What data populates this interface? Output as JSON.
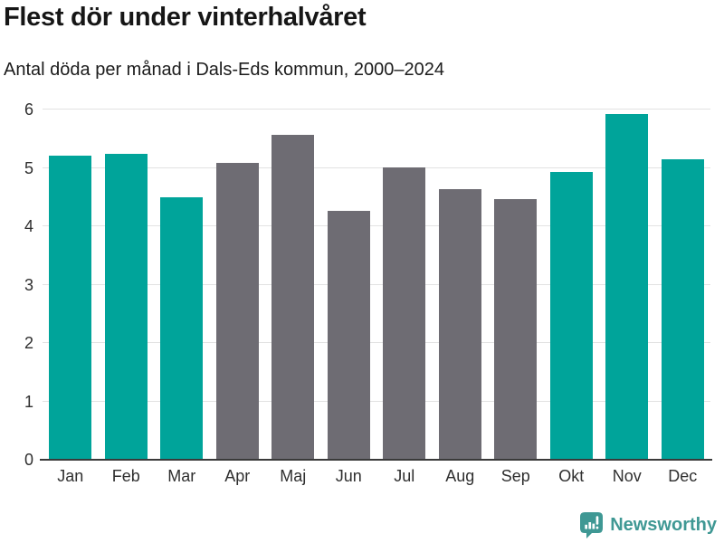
{
  "header": {
    "title": "Flest dör under vinterhalvåret",
    "subtitle": "Antal döda per månad i Dals-Eds kommun, 2000–2024"
  },
  "chart_data": {
    "type": "bar",
    "title": "Flest dör under vinterhalvåret",
    "subtitle": "Antal döda per månad i Dals-Eds kommun, 2000–2024",
    "categories": [
      "Jan",
      "Feb",
      "Mar",
      "Apr",
      "Maj",
      "Jun",
      "Jul",
      "Aug",
      "Sep",
      "Okt",
      "Nov",
      "Dec"
    ],
    "values": [
      5.21,
      5.24,
      4.49,
      5.08,
      5.57,
      4.26,
      5.01,
      4.64,
      4.46,
      4.93,
      5.93,
      5.14
    ],
    "highlighted": [
      true,
      true,
      true,
      false,
      false,
      false,
      false,
      false,
      false,
      true,
      true,
      true
    ],
    "colors": {
      "highlight": "#00a49a",
      "default": "#6e6c73",
      "grid": "#e2e2e2",
      "axis": "#3a3a3a"
    },
    "xlabel": "",
    "ylabel": "",
    "ylim": [
      0,
      6
    ],
    "yticks": [
      0,
      1,
      2,
      3,
      4,
      5,
      6
    ],
    "grid": true,
    "legend": false
  },
  "footer": {
    "logo_text": "Newsworthy",
    "logo_color": "#3f9894",
    "logo_icon": "newsworthy-chart-bubble-icon"
  }
}
